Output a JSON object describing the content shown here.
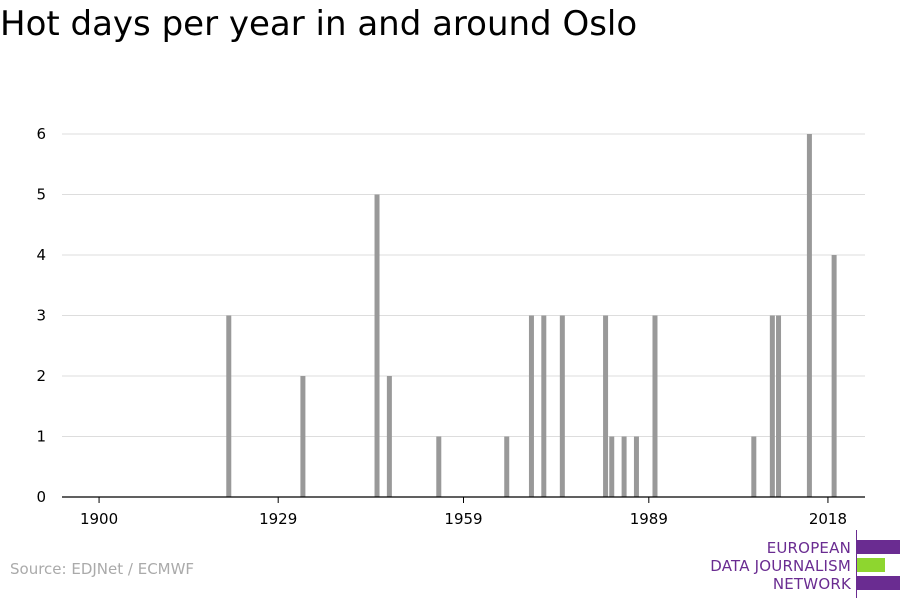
{
  "chart_data": {
    "type": "bar",
    "title": "Hot days per year in and around Oslo",
    "xlabel": "",
    "ylabel": "",
    "xlim": [
      1894,
      2024
    ],
    "ylim": [
      0,
      6
    ],
    "x_ticks": [
      1900,
      1929,
      1959,
      1989,
      2018
    ],
    "y_ticks": [
      0,
      1,
      2,
      3,
      4,
      5,
      6
    ],
    "grid": true,
    "bar_color": "#999999",
    "x": [
      1921,
      1933,
      1945,
      1947,
      1955,
      1966,
      1970,
      1972,
      1975,
      1982,
      1983,
      1985,
      1987,
      1990,
      2006,
      2009,
      2010,
      2015,
      2019
    ],
    "values": [
      3,
      2,
      5,
      2,
      1,
      1,
      3,
      3,
      3,
      3,
      1,
      1,
      1,
      3,
      1,
      3,
      3,
      6,
      4
    ]
  },
  "source": "Source: EDJNet / ECMWF",
  "logo": {
    "line1": "EUROPEAN",
    "line2": "DATA JOURNALISM",
    "line3": "NETWORK",
    "colors": {
      "purple": "#6a2c91",
      "green": "#8ed62f"
    }
  }
}
